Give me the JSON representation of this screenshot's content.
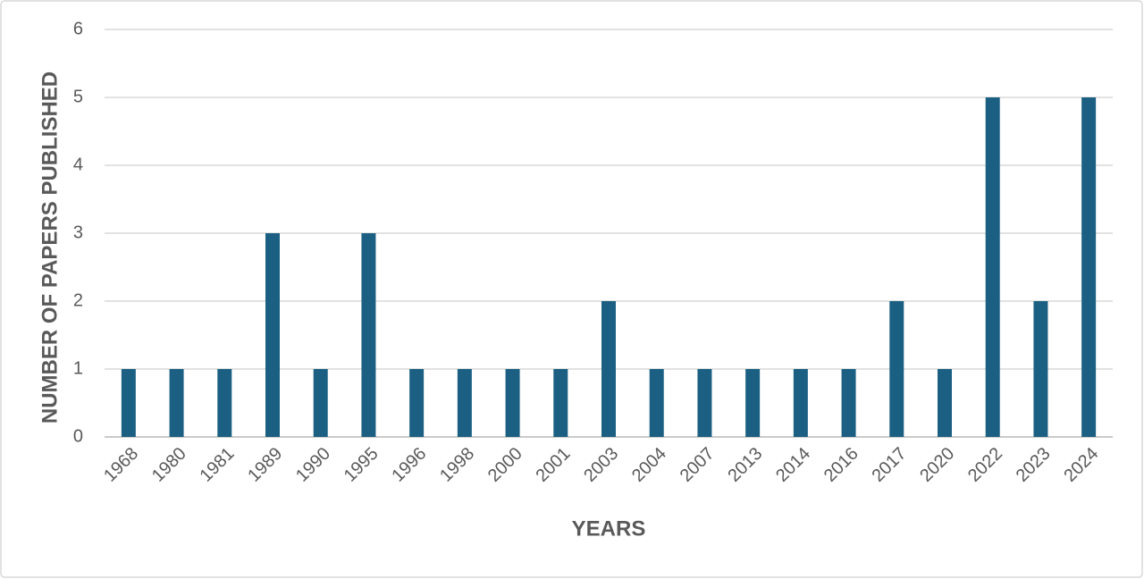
{
  "chart_data": {
    "type": "bar",
    "x_label": "YEARS",
    "y_label": "NUMBER OF PAPERS PUBLISHED",
    "categories": [
      "1968",
      "1980",
      "1981",
      "1989",
      "1990",
      "1995",
      "1996",
      "1998",
      "2000",
      "2001",
      "2003",
      "2004",
      "2007",
      "2013",
      "2014",
      "2016",
      "2017",
      "2020",
      "2022",
      "2023",
      "2024"
    ],
    "values": [
      1,
      1,
      1,
      3,
      1,
      3,
      1,
      1,
      1,
      1,
      2,
      1,
      1,
      1,
      1,
      1,
      2,
      1,
      5,
      2,
      5
    ],
    "color": "#1b6082",
    "ylim": [
      0,
      6
    ],
    "yticks": [
      0,
      1,
      2,
      3,
      4,
      5,
      6
    ],
    "grid": true
  }
}
